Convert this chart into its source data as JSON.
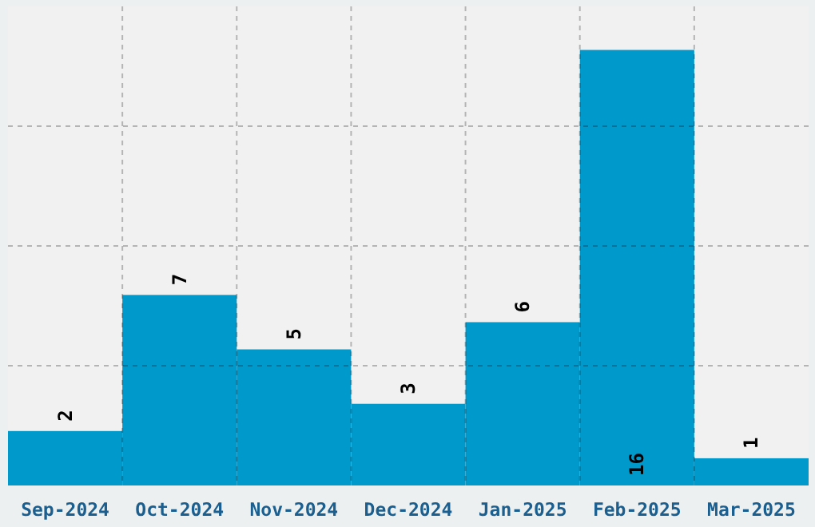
{
  "chart_data": {
    "type": "bar",
    "categories": [
      "Sep-2024",
      "Oct-2024",
      "Nov-2024",
      "Dec-2024",
      "Jan-2025",
      "Feb-2025",
      "Mar-2025"
    ],
    "values": [
      2,
      7,
      5,
      3,
      6,
      16,
      1
    ],
    "color": "#0099cc",
    "ylim": [
      0,
      17.6
    ],
    "yticks": [
      {
        "value": 4.4,
        "label": null
      },
      {
        "value": 8.8,
        "label": null
      },
      {
        "value": 13.2,
        "label": null
      }
    ],
    "tick_labels": "x",
    "grid": true,
    "data_labels": true
  }
}
